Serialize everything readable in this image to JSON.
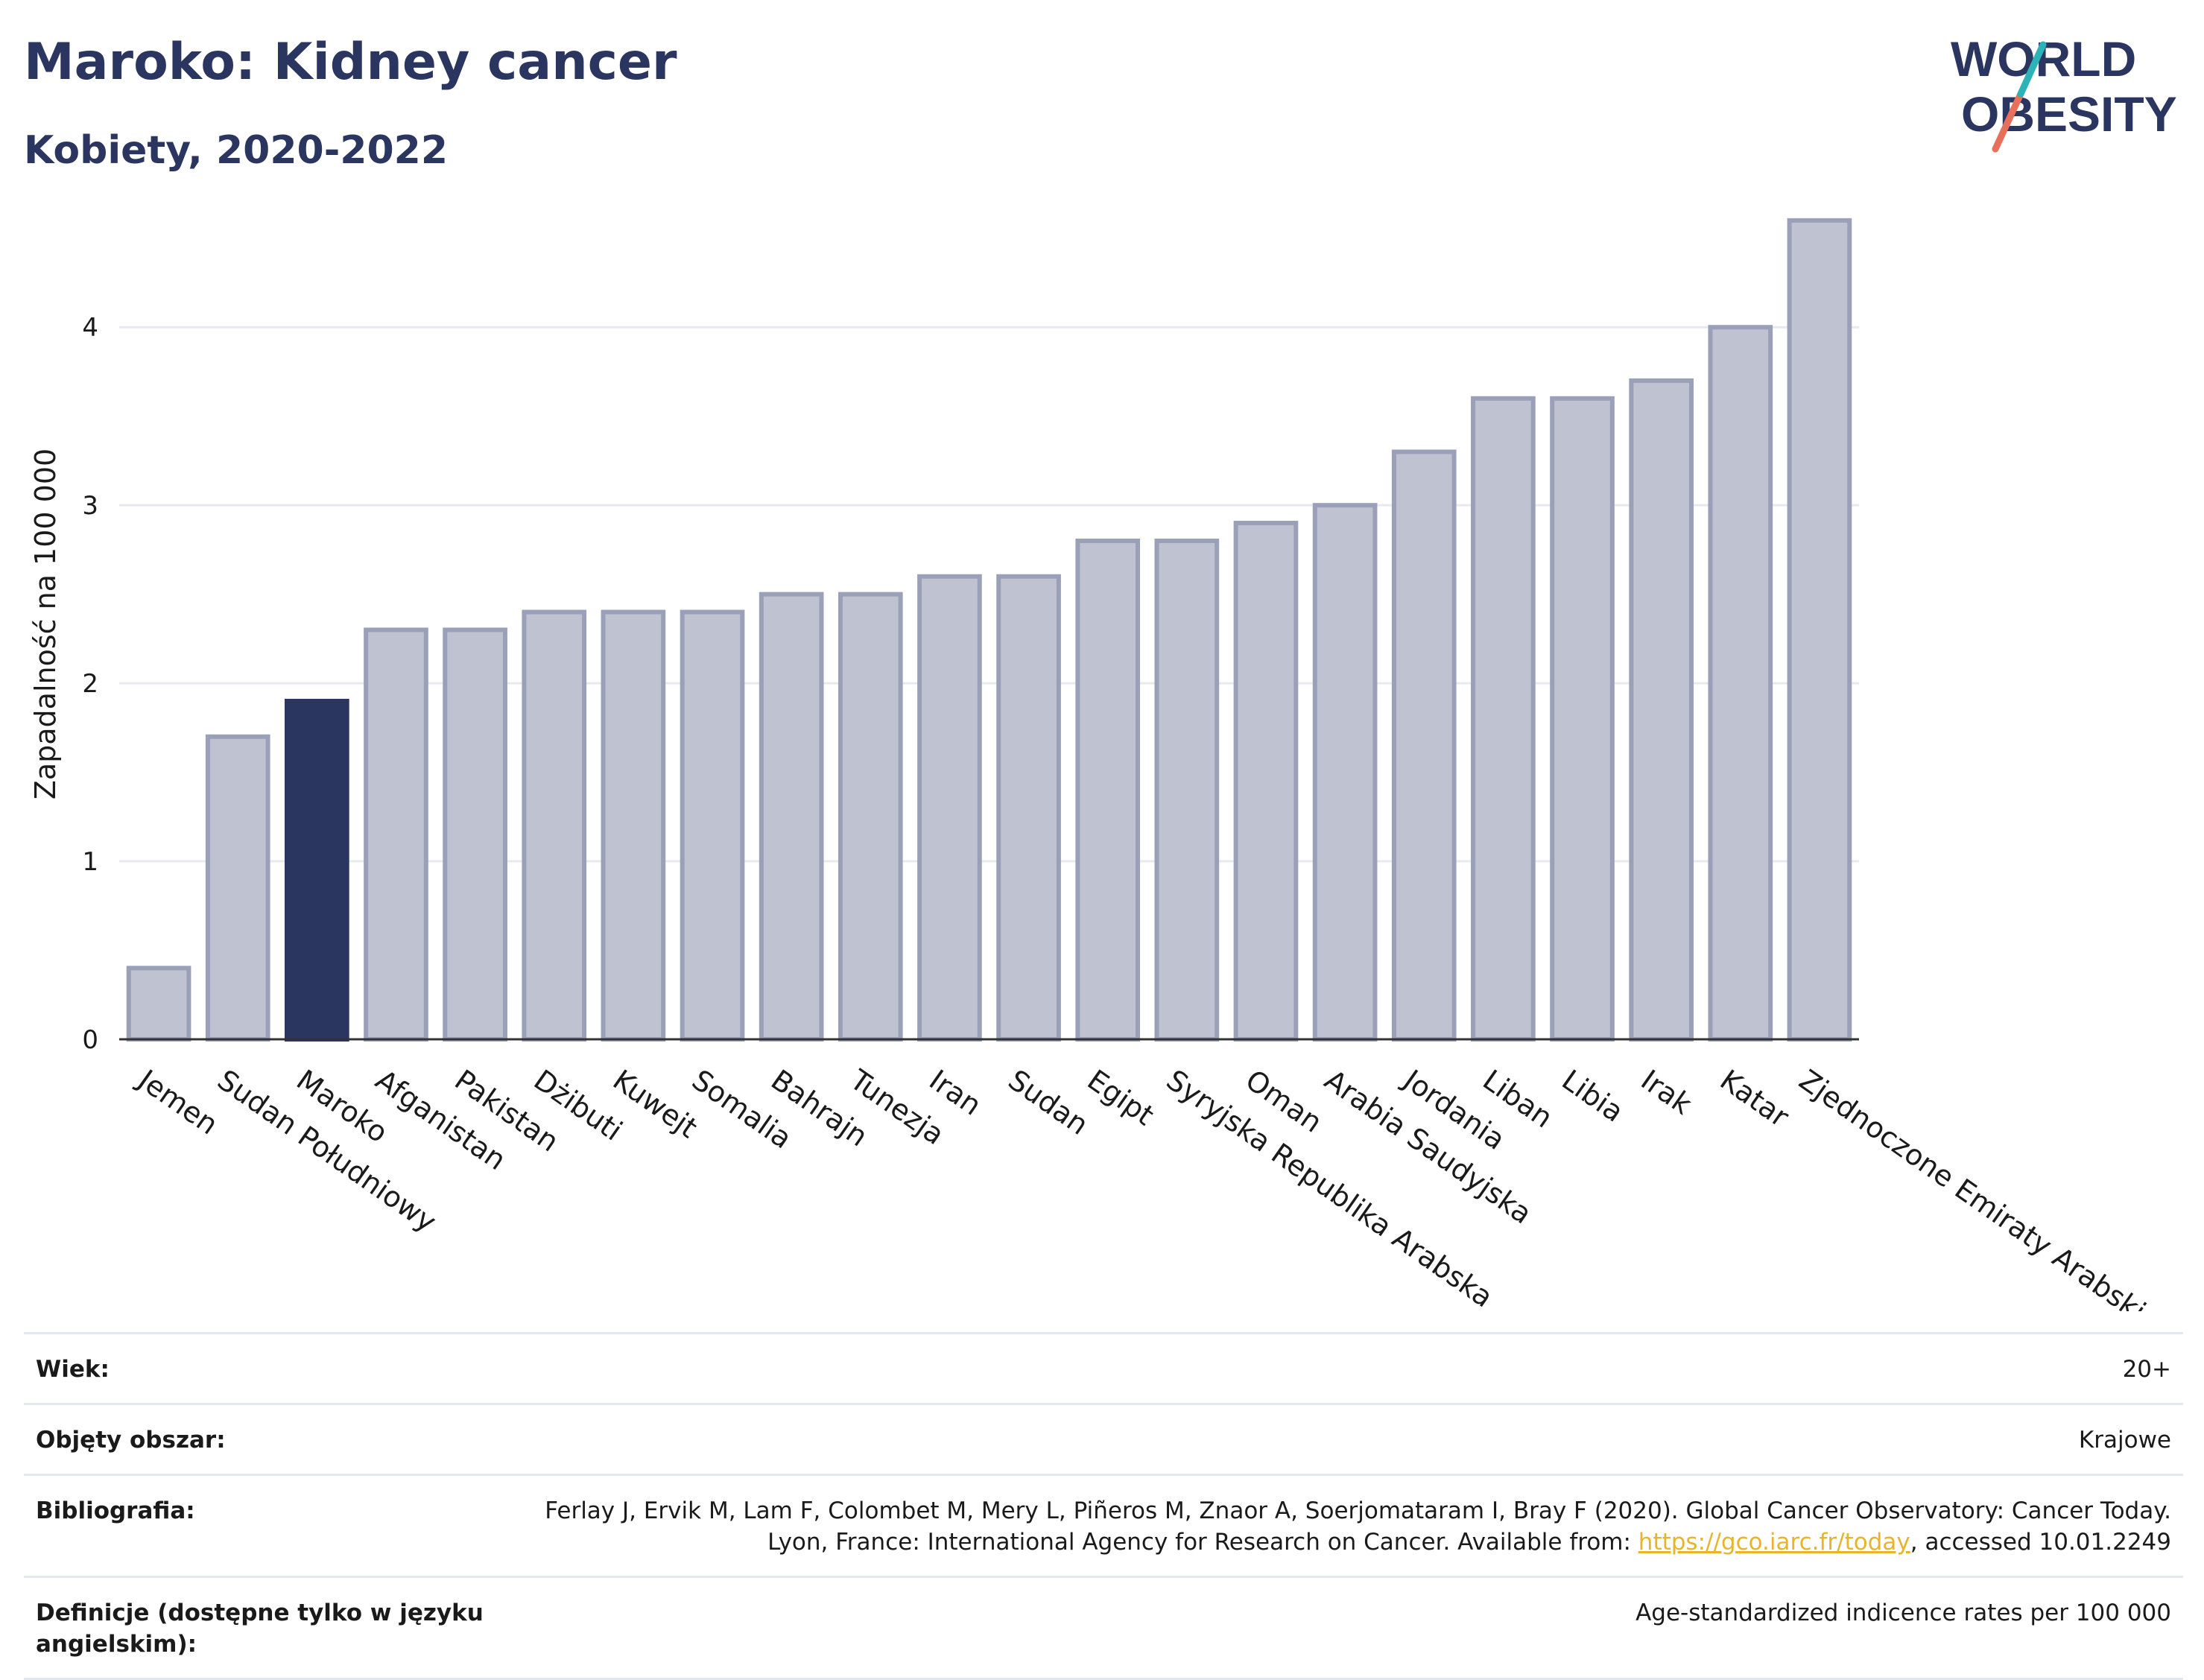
{
  "header": {
    "title": "Maroko: Kidney cancer",
    "subtitle": "Kobiety, 2020-2022"
  },
  "logo": {
    "line1": "WORLD",
    "line2": "OBESITY",
    "accent_colors": [
      "#2bb3b8",
      "#e8705a"
    ]
  },
  "chart_data": {
    "type": "bar",
    "title": "Maroko: Kidney cancer",
    "subtitle": "Kobiety, 2020-2022",
    "ylabel": "Zapadalność na 100 000",
    "ylim": [
      0,
      4.75
    ],
    "yticks": [
      0,
      1,
      2,
      3,
      4
    ],
    "grid": true,
    "highlight": "Maroko",
    "colors": {
      "highlight": "#2b3660",
      "bar": "#bfc2d0",
      "bar_edge": "#9aa0b8"
    },
    "categories": [
      "Jemen",
      "Sudan Południowy",
      "Maroko",
      "Afganistan",
      "Pakistan",
      "Dżibuti",
      "Kuwejt",
      "Somalia",
      "Bahrajn",
      "Tunezja",
      "Iran",
      "Sudan",
      "Egipt",
      "Syryjska Republika Arabska",
      "Oman",
      "Arabia Saudyjska",
      "Jordania",
      "Liban",
      "Libia",
      "Irak",
      "Katar",
      "Zjednoczone Emiraty Arabskie"
    ],
    "values": [
      0.4,
      1.7,
      1.9,
      2.3,
      2.3,
      2.4,
      2.4,
      2.4,
      2.5,
      2.5,
      2.6,
      2.6,
      2.8,
      2.8,
      2.9,
      3.0,
      3.3,
      3.6,
      3.6,
      3.7,
      4.0,
      4.6
    ]
  },
  "info": {
    "age_label": "Wiek:",
    "age_value": "20+",
    "coverage_label": "Objęty obszar:",
    "coverage_value": "Krajowe",
    "bib_label": "Bibliografia:",
    "bib_text_1": "Ferlay J, Ervik M, Lam F, Colombet M, Mery L, Piñeros M, Znaor A, Soerjomataram I, Bray F (2020). Global Cancer Observatory: Cancer Today. Lyon, France: International Agency for Research on Cancer. Available from: ",
    "bib_link": "https://gco.iarc.fr/today",
    "bib_text_2": ", accessed 10.01.2249",
    "def_label": "Definicje (dostępne tylko w języku angielskim):",
    "def_value": "Age-standardized indicence rates per 100 000"
  }
}
